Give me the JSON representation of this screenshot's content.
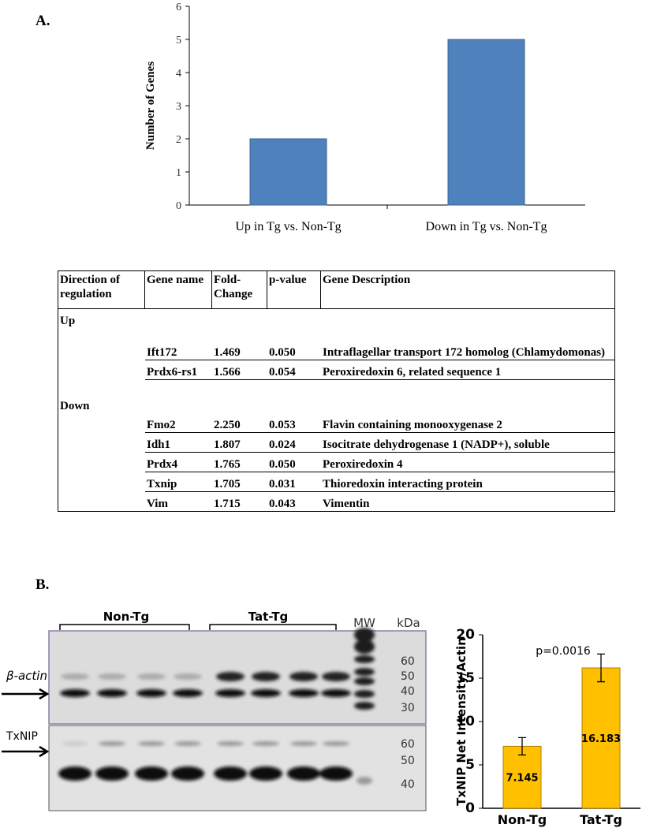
{
  "panel_a_label": "A.",
  "panel_b_label": "B.",
  "chart_data": [
    {
      "type": "bar",
      "ylabel": "Number of Genes",
      "categories": [
        "Up in Tg vs. Non-Tg",
        "Down in Tg vs. Non-Tg"
      ],
      "values": [
        2,
        5
      ],
      "color": "#4f81bd",
      "ylim": [
        0,
        6
      ],
      "yticks": [
        0,
        1,
        2,
        3,
        4,
        5,
        6
      ],
      "grid": false
    },
    {
      "type": "bar",
      "ylabel": "TxNIP Net Intensity/Actin",
      "categories": [
        "Non-Tg",
        "Tat-Tg"
      ],
      "values": [
        7.145,
        16.183
      ],
      "errors": [
        1.0,
        1.6
      ],
      "data_labels": true,
      "color": "#ffc000",
      "ylim": [
        0,
        20
      ],
      "yticks": [
        0,
        5,
        10,
        15,
        20
      ],
      "grid": false,
      "annotation": "p=0.0016"
    }
  ],
  "table": {
    "header": [
      "Direction of regulation",
      "Gene name",
      "Fold-Change",
      "p-value",
      "Gene Description"
    ],
    "groups": [
      {
        "label": "Up",
        "rows": [
          [
            "Ift172",
            "1.469",
            "0.050",
            "Intraflagellar transport 172 homolog (Chlamydomonas)"
          ],
          [
            "Prdx6-rs1",
            "1.566",
            "0.054",
            "Peroxiredoxin 6, related sequence 1"
          ]
        ]
      },
      {
        "label": "Down",
        "rows": [
          [
            "Fmo2",
            "2.250",
            "0.053",
            "Flavin containing monooxygenase 2"
          ],
          [
            "Idh1",
            "1.807",
            "0.024",
            "Isocitrate dehydrogenase 1 (NADP+), soluble"
          ],
          [
            "Prdx4",
            "1.765",
            "0.050",
            "Peroxiredoxin 4"
          ],
          [
            "Txnip",
            "1.705",
            "0.031",
            "Thioredoxin interacting protein"
          ],
          [
            "Vim",
            "1.715",
            "0.043",
            "Vimentin"
          ]
        ]
      }
    ]
  },
  "blot": {
    "groups": [
      "Non-Tg",
      "Tat-Tg"
    ],
    "mw_label": "MW",
    "unit": "kDa",
    "upper_label": "β-actin",
    "lower_label": "TxNIP",
    "upper_markers": [
      "60",
      "50",
      "40",
      "30"
    ],
    "lower_markers": [
      "60",
      "50",
      "40"
    ]
  }
}
